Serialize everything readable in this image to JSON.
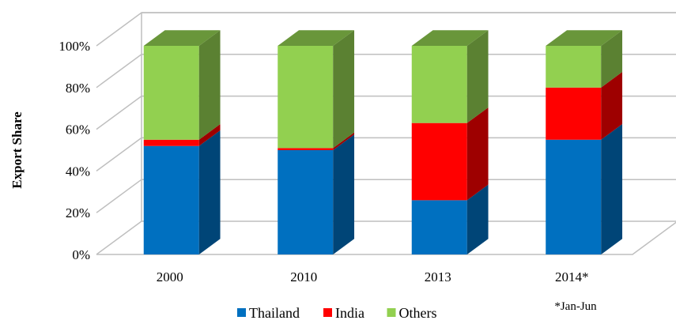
{
  "chart_data": {
    "type": "bar",
    "stacked": true,
    "normalized": true,
    "three_d": true,
    "categories": [
      "2000",
      "2010",
      "2013",
      "2014*"
    ],
    "series": [
      {
        "name": "Thailand",
        "color": "#0070C0",
        "values": [
          52,
          50,
          26,
          55
        ]
      },
      {
        "name": "India",
        "color": "#FF0000",
        "values": [
          3,
          1,
          37,
          25
        ]
      },
      {
        "name": "Others",
        "color": "#92D050",
        "values": [
          45,
          49,
          37,
          20
        ]
      }
    ],
    "ylabel": "Export Share",
    "xlabel": "",
    "ylim": [
      0,
      100
    ],
    "yticks": [
      "0%",
      "20%",
      "40%",
      "60%",
      "80%",
      "100%"
    ],
    "grid": true,
    "legend_position": "bottom",
    "note": "*Jan-Jun"
  }
}
